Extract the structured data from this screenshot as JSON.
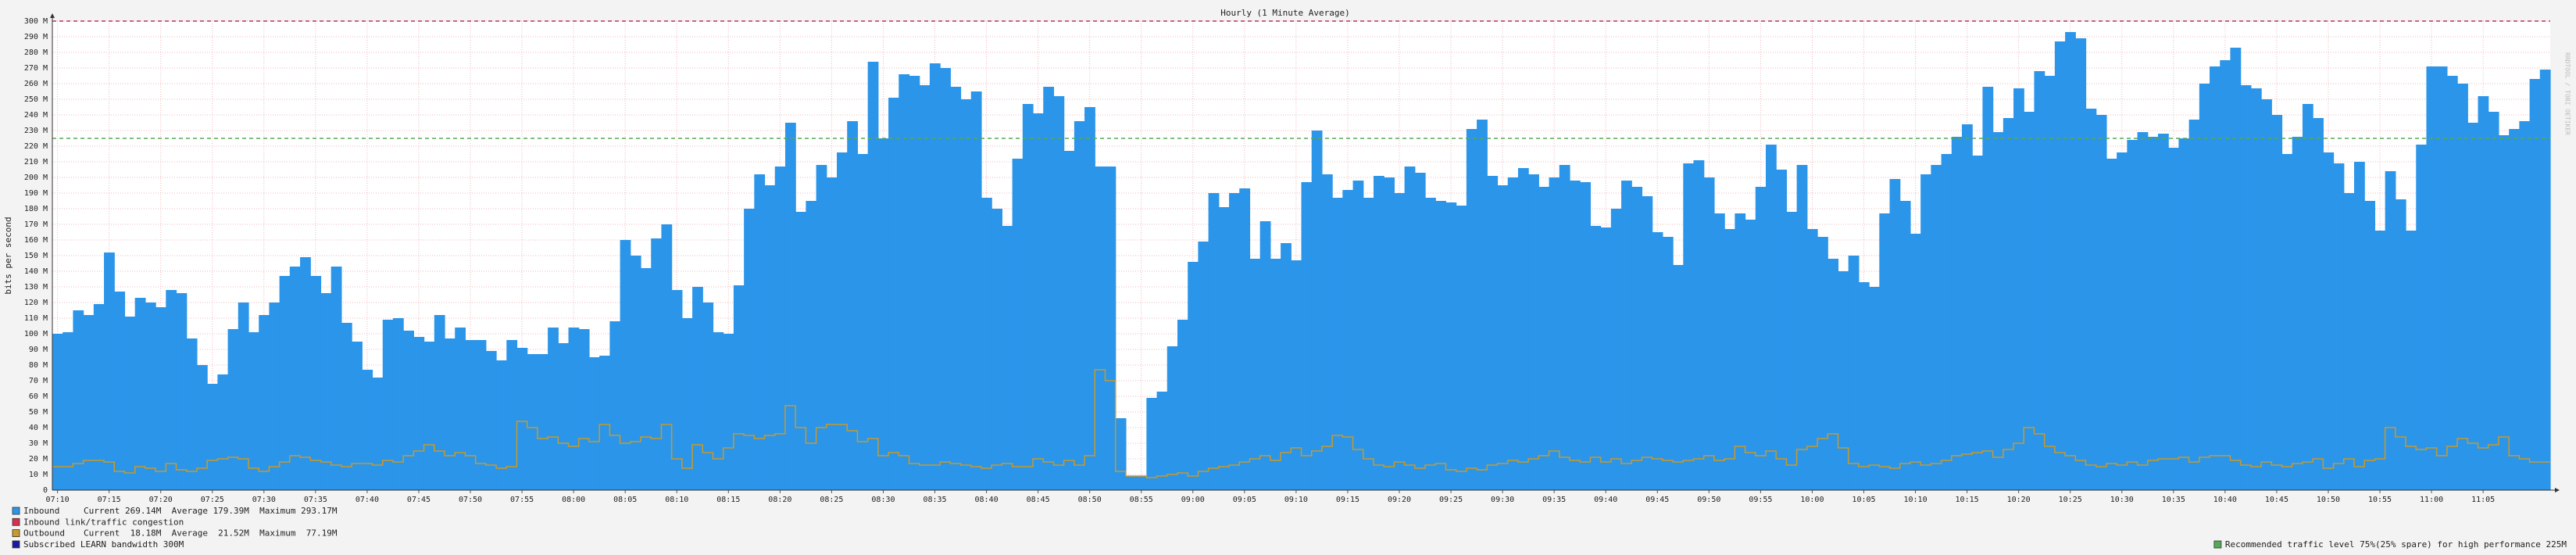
{
  "chart_data": {
    "type": "area",
    "title": "Hourly (1 Minute Average)",
    "y_label": "bits per second",
    "side_text": "RRDTOOL / TOBI OETIKER",
    "grid": true,
    "ylim": [
      0,
      300
    ],
    "yticks": [
      0,
      {
        "value": 10,
        "label": "10 M"
      },
      {
        "value": 20,
        "label": "20 M"
      },
      {
        "value": 30,
        "label": "30 M"
      },
      {
        "value": 40,
        "label": "40 M"
      },
      {
        "value": 50,
        "label": "50 M"
      },
      {
        "value": 60,
        "label": "60 M"
      },
      {
        "value": 70,
        "label": "70 M"
      },
      {
        "value": 80,
        "label": "80 M"
      },
      {
        "value": 90,
        "label": "90 M"
      },
      {
        "value": 100,
        "label": "100 M"
      },
      {
        "value": 110,
        "label": "110 M"
      },
      {
        "value": 120,
        "label": "120 M"
      },
      {
        "value": 130,
        "label": "130 M"
      },
      {
        "value": 140,
        "label": "140 M"
      },
      {
        "value": 150,
        "label": "150 M"
      },
      {
        "value": 160,
        "label": "160 M"
      },
      {
        "value": 170,
        "label": "170 M"
      },
      {
        "value": 180,
        "label": "180 M"
      },
      {
        "value": 190,
        "label": "190 M"
      },
      {
        "value": 200,
        "label": "200 M"
      },
      {
        "value": 210,
        "label": "210 M"
      },
      {
        "value": 220,
        "label": "220 M"
      },
      {
        "value": 230,
        "label": "230 M"
      },
      {
        "value": 240,
        "label": "240 M"
      },
      {
        "value": 250,
        "label": "250 M"
      },
      {
        "value": 260,
        "label": "260 M"
      },
      {
        "value": 270,
        "label": "270 M"
      },
      {
        "value": 280,
        "label": "280 M"
      },
      {
        "value": 290,
        "label": "290 M"
      },
      {
        "value": 300,
        "label": "300 M"
      }
    ],
    "xlim": [
      -0.5,
      241.5
    ],
    "xticks": [
      {
        "value": 0,
        "label": "07:10"
      },
      {
        "value": 5,
        "label": "07:15"
      },
      {
        "value": 10,
        "label": "07:20"
      },
      {
        "value": 15,
        "label": "07:25"
      },
      {
        "value": 20,
        "label": "07:30"
      },
      {
        "value": 25,
        "label": "07:35"
      },
      {
        "value": 30,
        "label": "07:40"
      },
      {
        "value": 35,
        "label": "07:45"
      },
      {
        "value": 40,
        "label": "07:50"
      },
      {
        "value": 45,
        "label": "07:55"
      },
      {
        "value": 50,
        "label": "08:00"
      },
      {
        "value": 55,
        "label": "08:05"
      },
      {
        "value": 60,
        "label": "08:10"
      },
      {
        "value": 65,
        "label": "08:15"
      },
      {
        "value": 70,
        "label": "08:20"
      },
      {
        "value": 75,
        "label": "08:25"
      },
      {
        "value": 80,
        "label": "08:30"
      },
      {
        "value": 85,
        "label": "08:35"
      },
      {
        "value": 90,
        "label": "08:40"
      },
      {
        "value": 95,
        "label": "08:45"
      },
      {
        "value": 100,
        "label": "08:50"
      },
      {
        "value": 105,
        "label": "08:55"
      },
      {
        "value": 110,
        "label": "09:00"
      },
      {
        "value": 115,
        "label": "09:05"
      },
      {
        "value": 120,
        "label": "09:10"
      },
      {
        "value": 125,
        "label": "09:15"
      },
      {
        "value": 130,
        "label": "09:20"
      },
      {
        "value": 135,
        "label": "09:25"
      },
      {
        "value": 140,
        "label": "09:30"
      },
      {
        "value": 145,
        "label": "09:35"
      },
      {
        "value": 150,
        "label": "09:40"
      },
      {
        "value": 155,
        "label": "09:45"
      },
      {
        "value": 160,
        "label": "09:50"
      },
      {
        "value": 165,
        "label": "09:55"
      },
      {
        "value": 170,
        "label": "10:00"
      },
      {
        "value": 175,
        "label": "10:05"
      },
      {
        "value": 180,
        "label": "10:10"
      },
      {
        "value": 185,
        "label": "10:15"
      },
      {
        "value": 190,
        "label": "10:20"
      },
      {
        "value": 195,
        "label": "10:25"
      },
      {
        "value": 200,
        "label": "10:30"
      },
      {
        "value": 205,
        "label": "10:35"
      },
      {
        "value": 210,
        "label": "10:40"
      },
      {
        "value": 215,
        "label": "10:45"
      },
      {
        "value": 220,
        "label": "10:50"
      },
      {
        "value": 225,
        "label": "10:55"
      },
      {
        "value": 230,
        "label": "11:00"
      },
      {
        "value": 235,
        "label": "11:05"
      }
    ],
    "series": [
      {
        "name": "Inbound",
        "stats": "Current 269.14M  Average 179.39M  Maximum 293.17M",
        "color": "#2b95ea",
        "style": "area",
        "values": [
          100,
          101,
          115,
          112,
          119,
          152,
          127,
          111,
          123,
          120,
          117,
          128,
          126,
          97,
          80,
          68,
          74,
          103,
          120,
          101,
          112,
          120,
          137,
          143,
          149,
          137,
          126,
          143,
          107,
          95,
          77,
          72,
          109,
          110,
          102,
          98,
          95,
          112,
          97,
          104,
          96,
          96,
          89,
          83,
          96,
          91,
          87,
          87,
          104,
          94,
          104,
          103,
          85,
          86,
          108,
          160,
          150,
          142,
          161,
          170,
          128,
          110,
          130,
          120,
          101,
          100,
          131,
          180,
          202,
          195,
          207,
          235,
          178,
          185,
          208,
          200,
          216,
          236,
          215,
          274,
          225,
          251,
          266,
          265,
          259,
          273,
          270,
          258,
          250,
          255,
          187,
          180,
          169,
          212,
          247,
          241,
          258,
          252,
          217,
          236,
          245,
          207,
          207,
          46,
          9,
          9,
          59,
          63,
          92,
          109,
          146,
          159,
          190,
          181,
          190,
          193,
          148,
          172,
          148,
          158,
          147,
          197,
          230,
          202,
          187,
          192,
          198,
          187,
          201,
          200,
          190,
          207,
          203,
          187,
          185,
          184,
          182,
          231,
          237,
          201,
          195,
          200,
          206,
          202,
          194,
          200,
          208,
          198,
          197,
          169,
          168,
          180,
          198,
          194,
          188,
          165,
          162,
          144,
          209,
          211,
          200,
          177,
          167,
          177,
          173,
          194,
          221,
          205,
          178,
          208,
          167,
          162,
          148,
          140,
          150,
          133,
          130,
          177,
          199,
          185,
          164,
          202,
          208,
          215,
          226,
          234,
          214,
          258,
          229,
          238,
          257,
          242,
          268,
          265,
          287,
          293,
          289,
          244,
          240,
          212,
          216,
          224,
          229,
          226,
          228,
          219,
          225,
          237,
          260,
          271,
          275,
          283,
          259,
          257,
          250,
          240,
          215,
          226,
          247,
          238,
          216,
          209,
          190,
          210,
          185,
          166,
          204,
          186,
          166,
          221,
          271,
          271,
          265,
          260,
          235,
          252,
          242,
          227,
          231,
          236,
          263,
          269
        ]
      },
      {
        "name": "Outbound",
        "stats": "Current  18.18M  Average  21.52M  Maximum  77.19M",
        "color": "#c89a2a",
        "style": "line",
        "values": [
          15,
          15,
          17,
          19,
          19,
          18,
          12,
          11,
          15,
          14,
          12,
          17,
          13,
          12,
          14,
          19,
          20,
          21,
          20,
          14,
          12,
          15,
          18,
          22,
          21,
          19,
          18,
          16,
          15,
          17,
          17,
          16,
          19,
          18,
          22,
          25,
          29,
          25,
          22,
          24,
          22,
          17,
          16,
          14,
          15,
          44,
          40,
          33,
          34,
          30,
          28,
          33,
          31,
          42,
          35,
          30,
          31,
          34,
          33,
          42,
          20,
          14,
          29,
          24,
          20,
          27,
          36,
          35,
          33,
          35,
          36,
          54,
          40,
          30,
          40,
          42,
          42,
          38,
          31,
          33,
          22,
          24,
          22,
          17,
          16,
          16,
          18,
          17,
          16,
          15,
          14,
          16,
          17,
          15,
          15,
          20,
          18,
          16,
          19,
          16,
          22,
          77,
          70,
          12,
          9,
          9,
          8,
          9,
          10,
          11,
          9,
          12,
          14,
          15,
          16,
          18,
          20,
          22,
          19,
          24,
          27,
          22,
          25,
          28,
          35,
          34,
          26,
          20,
          16,
          15,
          18,
          16,
          14,
          16,
          17,
          13,
          12,
          14,
          13,
          16,
          17,
          19,
          18,
          20,
          22,
          25,
          21,
          19,
          18,
          21,
          18,
          20,
          17,
          19,
          21,
          20,
          19,
          18,
          19,
          20,
          22,
          19,
          20,
          28,
          24,
          22,
          25,
          20,
          16,
          26,
          28,
          33,
          36,
          27,
          17,
          15,
          16,
          15,
          14,
          17,
          18,
          16,
          17,
          19,
          22,
          23,
          24,
          25,
          21,
          26,
          30,
          40,
          36,
          28,
          24,
          22,
          19,
          16,
          15,
          17,
          16,
          18,
          16,
          19,
          20,
          20,
          21,
          18,
          21,
          22,
          22,
          19,
          16,
          15,
          18,
          16,
          15,
          17,
          18,
          20,
          14,
          17,
          20,
          15,
          19,
          20,
          40,
          34,
          28,
          26,
          27,
          22,
          28,
          33,
          30,
          27,
          29,
          34,
          22,
          20,
          18,
          18
        ]
      }
    ],
    "notes": [
      {
        "label": "Inbound link/traffic congestion",
        "color": "#d6304f"
      }
    ],
    "hlines": [
      {
        "value": 300,
        "label": "Subscribed LEARN bandwidth 300M",
        "color": "#c0305a",
        "legend_color": "#1a1aa0"
      },
      {
        "value": 225,
        "label": "Recommended traffic level 75%(25% spare) for high performance 225M",
        "color": "#55aa55"
      }
    ]
  }
}
